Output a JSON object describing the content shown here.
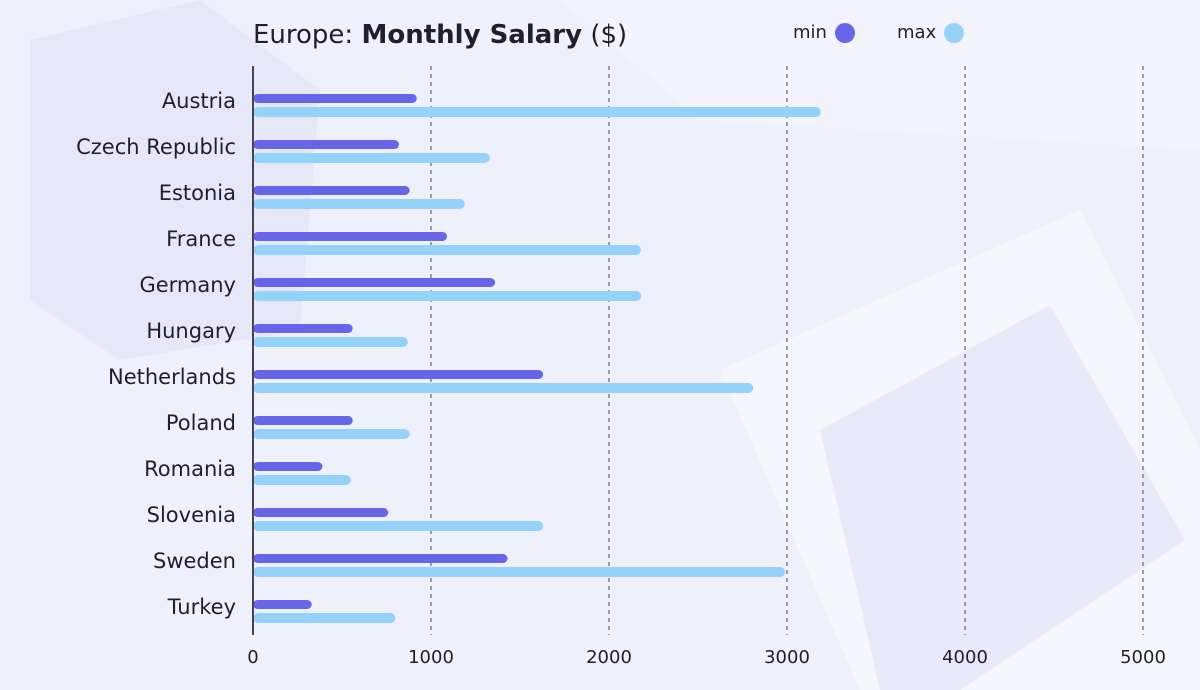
{
  "title": {
    "prefix": "Europe: ",
    "bold": "Monthly Salary",
    "suffix": " ($)"
  },
  "legend": {
    "min_label": "min",
    "max_label": "max"
  },
  "colors": {
    "min": "#6866e8",
    "max": "#95d2fa",
    "grid": "#6b6b80",
    "axis": "#444455",
    "text": "#1f1f2e"
  },
  "chart_data": {
    "type": "bar",
    "orientation": "horizontal",
    "title": "Europe: Monthly Salary ($)",
    "categories": [
      "Austria",
      "Czech Republic",
      "Estonia",
      "France",
      "Germany",
      "Hungary",
      "Netherlands",
      "Poland",
      "Romania",
      "Slovenia",
      "Sweden",
      "Turkey"
    ],
    "series": [
      {
        "name": "min",
        "values": [
          920,
          820,
          880,
          1090,
          1360,
          560,
          1630,
          560,
          390,
          760,
          1430,
          330
        ]
      },
      {
        "name": "max",
        "values": [
          3190,
          1330,
          1190,
          2180,
          2180,
          870,
          2810,
          880,
          550,
          1630,
          2990,
          800
        ]
      }
    ],
    "xlim": [
      0,
      5000
    ],
    "xticks": [
      "0",
      "1000",
      "2000",
      "3000",
      "4000",
      "5000"
    ],
    "grid": "vertical-dashed",
    "legend_position": "top-right"
  }
}
